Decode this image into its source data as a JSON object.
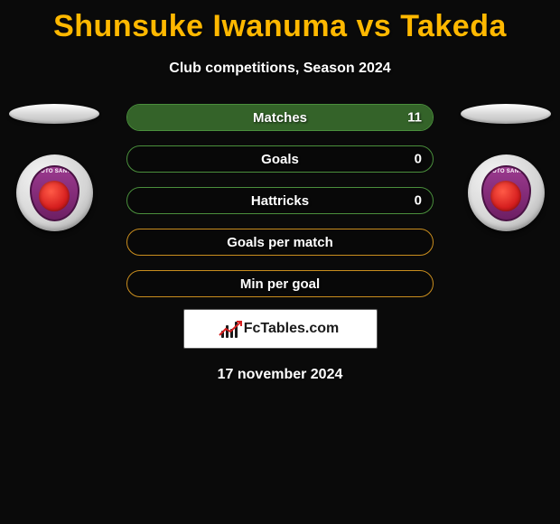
{
  "title": "Shunsuke Iwanuma vs Takeda",
  "subtitle": "Club competitions, Season 2024",
  "date": "17 november 2024",
  "logo_text": "FcTables.com",
  "colors": {
    "title": "#ffb800",
    "text": "#ffffff",
    "background": "#0a0a0a",
    "bar_green_border": "#4a8f3c",
    "bar_green_fill": "rgba(82,160,64,0.6)",
    "bar_amber_border": "#c98d1e",
    "bar_amber_fill": "rgba(210,158,48,0.75)"
  },
  "badge": {
    "top_text": "KYOTO SANGA"
  },
  "stats": [
    {
      "label": "Matches",
      "left_value": "",
      "right_value": "11",
      "left_fill_pct": 0,
      "right_fill_pct": 100,
      "style": "green"
    },
    {
      "label": "Goals",
      "left_value": "",
      "right_value": "0",
      "left_fill_pct": 0,
      "right_fill_pct": 0,
      "style": "green"
    },
    {
      "label": "Hattricks",
      "left_value": "",
      "right_value": "0",
      "left_fill_pct": 0,
      "right_fill_pct": 0,
      "style": "green"
    },
    {
      "label": "Goals per match",
      "left_value": "",
      "right_value": "",
      "left_fill_pct": 0,
      "right_fill_pct": 0,
      "style": "amber"
    },
    {
      "label": "Min per goal",
      "left_value": "",
      "right_value": "",
      "left_fill_pct": 0,
      "right_fill_pct": 0,
      "style": "amber"
    }
  ]
}
